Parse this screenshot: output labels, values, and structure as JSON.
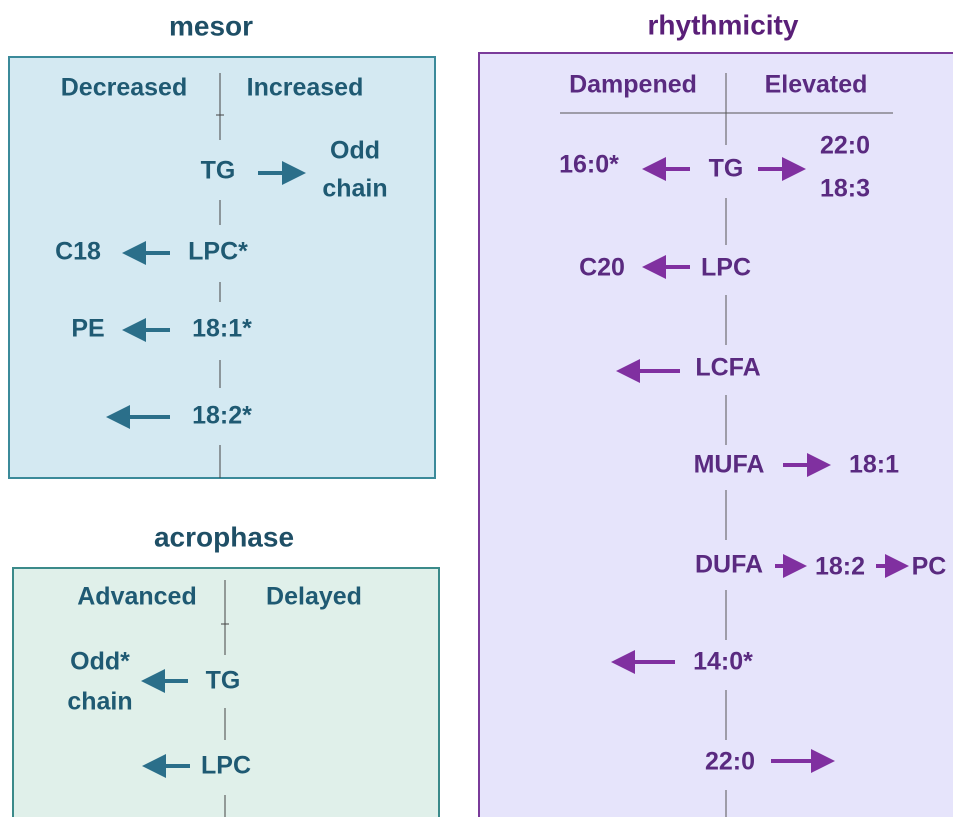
{
  "mesor": {
    "title": "mesor",
    "left_label": "Decreased",
    "right_label": "Increased",
    "tg": "TG",
    "odd_chain": [
      "Odd",
      "chain"
    ],
    "c18": "C18",
    "lpc": "LPC*",
    "pe": "PE",
    "f18_1": "18:1*",
    "f18_2": "18:2*"
  },
  "acrophase": {
    "title": "acrophase",
    "left_label": "Advanced",
    "right_label": "Delayed",
    "odd_chain": [
      "Odd*",
      "chain"
    ],
    "tg": "TG",
    "lpc": "LPC"
  },
  "rhythmicity": {
    "title": "rhythmicity",
    "left_label": "Dampened",
    "right_label": "Elevated",
    "f16_0": "16:0*",
    "tg": "TG",
    "tg_elevated": [
      "22:0",
      "18:3"
    ],
    "c20": "C20",
    "lpc": "LPC",
    "lcfa": "LCFA",
    "mufa": "MUFA",
    "mufa_elevated": "18:1",
    "dufa": "DUFA",
    "dufa_elevated": "18:2",
    "dufa_next": "PC",
    "f14_0": "14:0*",
    "f22_0": "22:0"
  }
}
